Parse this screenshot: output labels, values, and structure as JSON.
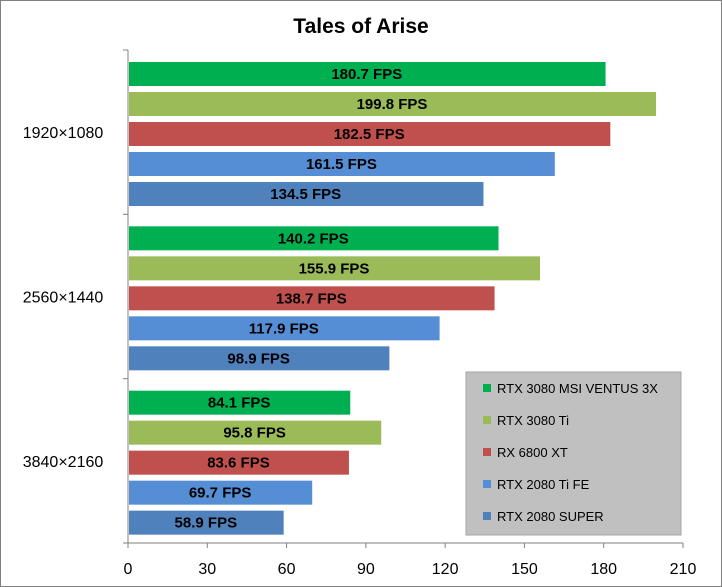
{
  "chart_data": {
    "type": "bar",
    "orientation": "horizontal",
    "title": "Tales of Arise",
    "categories": [
      "1920×1080",
      "2560×1440",
      "3840×2160"
    ],
    "series": [
      {
        "name": "RTX 3080 MSI VENTUS 3X",
        "color": "#00b050",
        "values": [
          180.7,
          140.2,
          84.1
        ],
        "labels": [
          "180.7 FPS",
          "140.2 FPS",
          "84.1 FPS"
        ]
      },
      {
        "name": "RTX 3080 Ti",
        "color": "#9bbb59",
        "values": [
          199.8,
          155.9,
          95.8
        ],
        "labels": [
          "199.8 FPS",
          "155.9 FPS",
          "95.8 FPS"
        ]
      },
      {
        "name": "RX 6800 XT",
        "color": "#c0504d",
        "values": [
          182.5,
          138.7,
          83.6
        ],
        "labels": [
          "182.5 FPS",
          "138.7 FPS",
          "83.6 FPS"
        ]
      },
      {
        "name": "RTX 2080 Ti FE",
        "color": "#558ed5",
        "values": [
          161.5,
          117.9,
          69.7
        ],
        "labels": [
          "161.5 FPS",
          "117.9 FPS",
          "69.7 FPS"
        ]
      },
      {
        "name": "RTX 2080 SUPER",
        "color": "#4f81bd",
        "values": [
          134.5,
          98.9,
          58.9
        ],
        "labels": [
          "134.5 FPS",
          "98.9 FPS",
          "58.9 FPS"
        ]
      }
    ],
    "x_ticks": [
      "0",
      "30",
      "60",
      "90",
      "120",
      "150",
      "180",
      "210"
    ],
    "xlim": [
      0,
      210
    ],
    "grid": false,
    "legend_position": "bottom-right",
    "legend_background": "#c0c0c0"
  }
}
